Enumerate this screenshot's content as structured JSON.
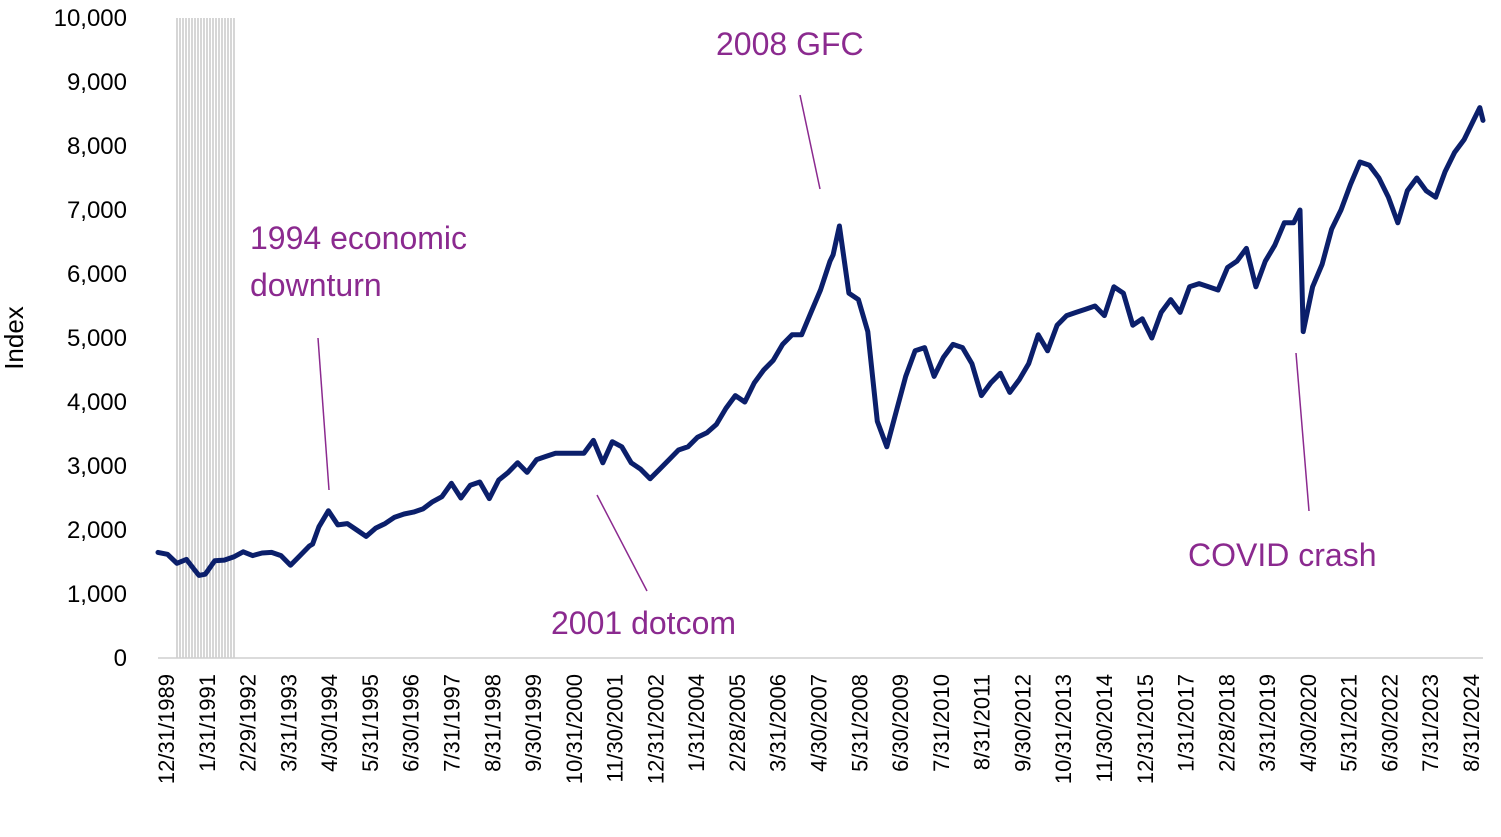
{
  "chart_data": {
    "type": "line",
    "title": "",
    "xlabel": "",
    "ylabel": "Index",
    "ylim": [
      0,
      10000
    ],
    "y_ticks": [
      "0",
      "1,000",
      "2,000",
      "3,000",
      "4,000",
      "5,000",
      "6,000",
      "7,000",
      "8,000",
      "9,000",
      "10,000"
    ],
    "x_tick_labels": [
      "12/31/1989",
      "1/31/1991",
      "2/29/1992",
      "3/31/1993",
      "4/30/1994",
      "5/31/1995",
      "6/30/1996",
      "7/31/1997",
      "8/31/1998",
      "9/30/1999",
      "10/31/2000",
      "11/30/2001",
      "12/31/2002",
      "1/31/2004",
      "2/28/2005",
      "3/31/2006",
      "4/30/2007",
      "5/31/2008",
      "6/30/2009",
      "7/31/2010",
      "8/31/2011",
      "9/30/2012",
      "10/31/2013",
      "11/30/2014",
      "12/31/2015",
      "1/31/2017",
      "2/28/2018",
      "3/31/2019",
      "4/30/2020",
      "5/31/2021",
      "6/30/2022",
      "7/31/2023",
      "8/31/2024"
    ],
    "grid": false,
    "legend": "none",
    "line_color": "#0b1f6b",
    "annotation_color": "#8b2a8f",
    "series": [
      {
        "x": [
          "1989-12",
          "1990-03",
          "1990-06",
          "1990-09",
          "1990-12",
          "1991-01",
          "1991-03",
          "1991-06",
          "1991-09",
          "1991-12",
          "1992-03",
          "1992-06",
          "1992-09",
          "1992-12",
          "1993-03",
          "1993-06",
          "1993-09",
          "1993-12",
          "1994-01",
          "1994-03",
          "1994-06",
          "1994-09",
          "1994-12",
          "1995-03",
          "1995-06",
          "1995-09",
          "1995-12",
          "1996-03",
          "1996-06",
          "1996-09",
          "1996-12",
          "1997-03",
          "1997-06",
          "1997-09",
          "1997-12",
          "1998-03",
          "1998-06",
          "1998-09",
          "1998-12",
          "1999-03",
          "1999-06",
          "1999-09",
          "1999-12",
          "2000-03",
          "2000-06",
          "2000-09",
          "2000-12",
          "2001-03",
          "2001-06",
          "2001-09",
          "2001-12",
          "2002-03",
          "2002-06",
          "2002-09",
          "2002-12",
          "2003-03",
          "2003-06",
          "2003-09",
          "2003-12",
          "2004-03",
          "2004-06",
          "2004-09",
          "2004-12",
          "2005-03",
          "2005-06",
          "2005-09",
          "2005-12",
          "2006-03",
          "2006-06",
          "2006-09",
          "2006-12",
          "2007-03",
          "2007-06",
          "2007-09",
          "2007-10",
          "2007-12",
          "2008-03",
          "2008-06",
          "2008-09",
          "2008-12",
          "2009-03",
          "2009-06",
          "2009-09",
          "2009-12",
          "2010-03",
          "2010-06",
          "2010-09",
          "2010-12",
          "2011-03",
          "2011-06",
          "2011-09",
          "2011-12",
          "2012-03",
          "2012-06",
          "2012-09",
          "2012-12",
          "2013-03",
          "2013-06",
          "2013-09",
          "2013-12",
          "2014-03",
          "2014-06",
          "2014-09",
          "2014-12",
          "2015-03",
          "2015-06",
          "2015-09",
          "2015-12",
          "2016-03",
          "2016-06",
          "2016-09",
          "2016-12",
          "2017-03",
          "2017-06",
          "2017-09",
          "2017-12",
          "2018-03",
          "2018-06",
          "2018-09",
          "2018-12",
          "2019-03",
          "2019-06",
          "2019-09",
          "2019-12",
          "2020-02",
          "2020-03",
          "2020-06",
          "2020-09",
          "2020-12",
          "2021-03",
          "2021-06",
          "2021-09",
          "2021-12",
          "2022-03",
          "2022-06",
          "2022-09",
          "2022-12",
          "2023-03",
          "2023-06",
          "2023-09",
          "2023-12",
          "2024-03",
          "2024-06",
          "2024-09",
          "2024-11",
          "2024-12"
        ],
        "values": [
          1650,
          1620,
          1480,
          1540,
          1350,
          1290,
          1310,
          1520,
          1530,
          1580,
          1660,
          1600,
          1640,
          1650,
          1600,
          1450,
          1600,
          1750,
          1780,
          2050,
          2300,
          2080,
          2100,
          2000,
          1900,
          2030,
          2100,
          2200,
          2250,
          2280,
          2330,
          2440,
          2520,
          2730,
          2500,
          2700,
          2750,
          2490,
          2780,
          2900,
          3050,
          2900,
          3100,
          3150,
          3200,
          3200,
          3200,
          3200,
          3400,
          3050,
          3380,
          3300,
          3050,
          2950,
          2800,
          2950,
          3100,
          3250,
          3300,
          3450,
          3520,
          3650,
          3900,
          4100,
          4000,
          4300,
          4500,
          4650,
          4900,
          5050,
          5050,
          5400,
          5750,
          6200,
          6300,
          6750,
          5700,
          5600,
          5100,
          3700,
          3300,
          3850,
          4400,
          4800,
          4850,
          4400,
          4700,
          4900,
          4850,
          4600,
          4100,
          4300,
          4450,
          4150,
          4350,
          4600,
          5050,
          4800,
          5200,
          5350,
          5400,
          5450,
          5500,
          5350,
          5800,
          5700,
          5200,
          5300,
          5000,
          5400,
          5600,
          5400,
          5800,
          5850,
          5800,
          5750,
          6100,
          6200,
          6400,
          5800,
          6200,
          6450,
          6800,
          6800,
          7000,
          5100,
          5800,
          6150,
          6700,
          7000,
          7400,
          7750,
          7700,
          7500,
          7200,
          6800,
          7300,
          7500,
          7300,
          7200,
          7600,
          7900,
          8100,
          8400,
          8600,
          8400
        ]
      }
    ],
    "annotations": [
      {
        "label": "1994 economic",
        "label2": "downturn",
        "x": "1994-06",
        "y": 2300
      },
      {
        "label": "2001 dotcom",
        "label2": "",
        "x": "2001-10",
        "y": 2600
      },
      {
        "label": "2008 GFC",
        "label2": "",
        "x": "2007-10",
        "y": 6750
      },
      {
        "label": "COVID crash",
        "label2": "",
        "x": "2020-03",
        "y": 5100
      }
    ]
  }
}
